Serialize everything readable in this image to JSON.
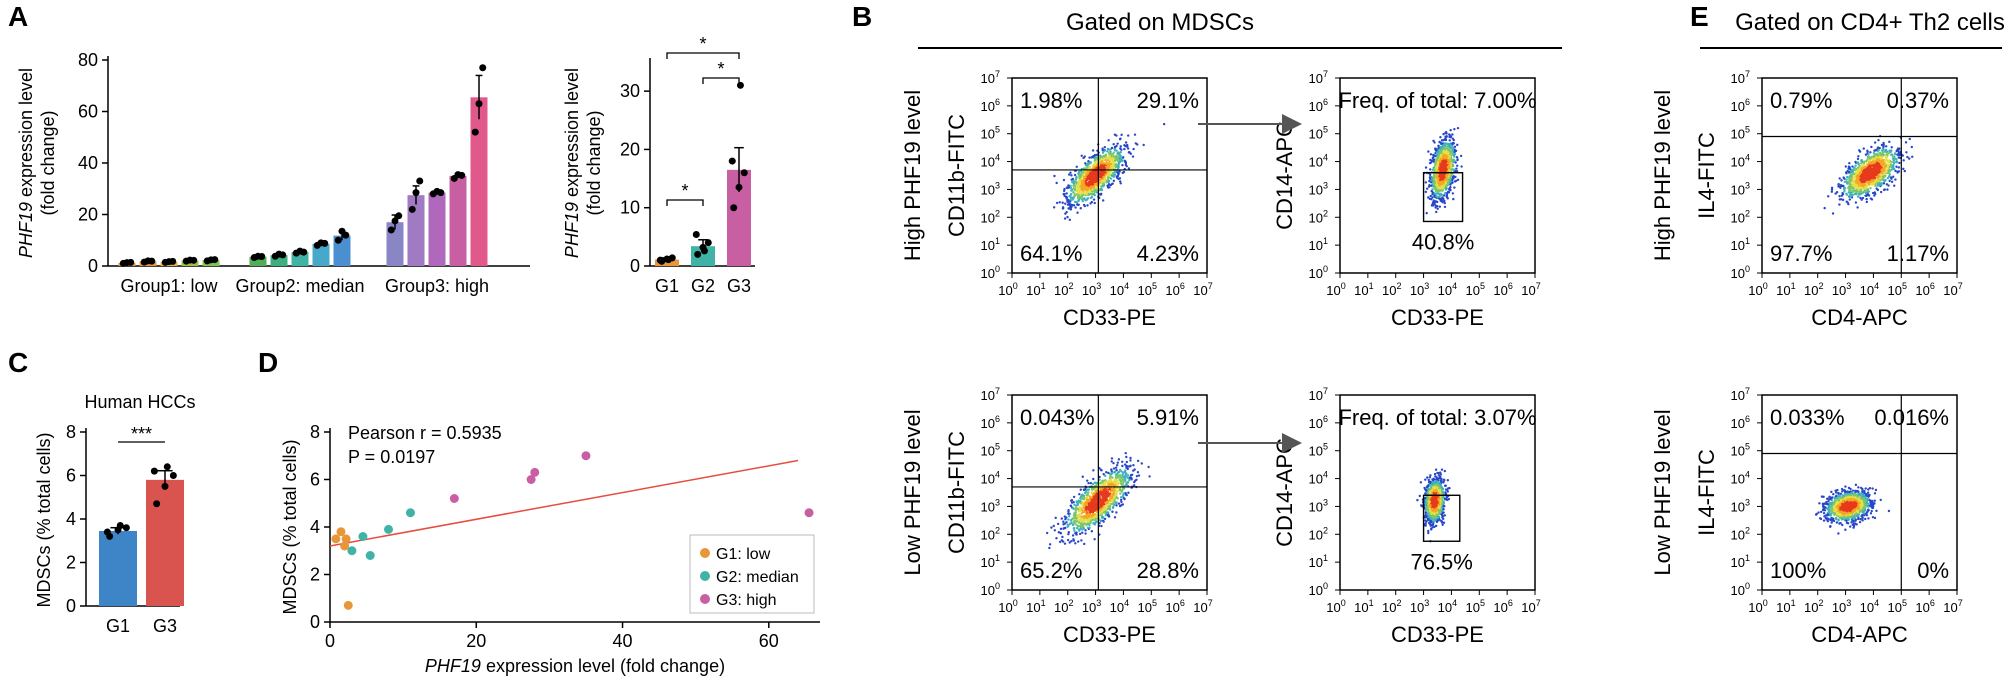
{
  "panel_labels": {
    "a": "A",
    "b": "B",
    "c": "C",
    "d": "D",
    "e": "E"
  },
  "headers": {
    "b": "Gated on MDSCs",
    "e": "Gated on CD4+ Th2 cells"
  },
  "chart_data": [
    {
      "id": "A1",
      "type": "bar",
      "title": "",
      "ylabel_gene": "PHF19",
      "ylabel_rest": " expression level",
      "ylabel_line2": "(fold change)",
      "ylim": [
        0,
        80
      ],
      "yticks": [
        0,
        20,
        40,
        60,
        80
      ],
      "groups": [
        "Group1: low",
        "Group2: median",
        "Group3: high"
      ],
      "values": [
        1.2,
        1.8,
        1.6,
        2.1,
        2.3,
        3.6,
        4.2,
        5.4,
        8.6,
        11.8,
        17,
        27.5,
        28.5,
        35,
        65.5
      ],
      "errors": [
        0.3,
        0.4,
        0.3,
        0.4,
        0.4,
        0.4,
        0.5,
        0.5,
        0.6,
        1.8,
        2.8,
        3.6,
        0.6,
        0.8,
        8.5
      ],
      "colors": [
        "#e8963a",
        "#e8963a",
        "#e0b040",
        "#9cc145",
        "#7fc24e",
        "#4fae57",
        "#3fae7e",
        "#3fb3a5",
        "#48a8c9",
        "#4b8fd0",
        "#8a86c6",
        "#a07ac2",
        "#b068bd",
        "#c95fa3",
        "#e0598a"
      ],
      "points": [
        [
          1.0,
          1.3,
          1.4
        ],
        [
          1.5,
          2.0,
          1.9
        ],
        [
          1.4,
          1.7,
          1.8
        ],
        [
          1.9,
          2.3,
          2.2
        ],
        [
          2.0,
          2.4,
          2.5
        ],
        [
          3.3,
          3.8,
          3.7
        ],
        [
          3.8,
          4.6,
          4.3
        ],
        [
          5.0,
          5.8,
          5.4
        ],
        [
          8.0,
          9.0,
          8.8
        ],
        [
          10.0,
          13.5,
          12.0
        ],
        [
          14.0,
          17.5,
          19.5
        ],
        [
          22.0,
          28.5,
          33.0
        ],
        [
          28.0,
          29.0,
          28.5
        ],
        [
          34.0,
          35.5,
          35.2
        ],
        [
          52.0,
          63.0,
          77.0
        ]
      ]
    },
    {
      "id": "A2",
      "type": "bar",
      "title": "",
      "ylabel_gene": "PHF19",
      "ylabel_rest": " expression level",
      "ylabel_line2": "(fold change)",
      "ylim": [
        0,
        35
      ],
      "yticks": [
        0,
        10,
        20,
        30
      ],
      "categories": [
        "G1",
        "G2",
        "G3"
      ],
      "values": [
        1.1,
        3.4,
        16.5
      ],
      "errors": [
        0.3,
        1.1,
        3.8
      ],
      "colors": [
        "#e8963a",
        "#3fb3a5",
        "#c95fa3"
      ],
      "points": [
        [
          0.8,
          1.2,
          1.4,
          1.0,
          1.1
        ],
        [
          2.0,
          3.2,
          4.0,
          5.4,
          2.6
        ],
        [
          10.0,
          13.5,
          16.0,
          18.0,
          31.0
        ]
      ],
      "significance": [
        {
          "label": "*",
          "from": 0,
          "to": 1
        },
        {
          "label": "*",
          "from": 1,
          "to": 2
        },
        {
          "label": "*",
          "from": 0,
          "to": 2
        }
      ]
    },
    {
      "id": "C",
      "type": "bar",
      "title": "Human HCCs",
      "ylabel": "MDSCs (% total cells)",
      "ylim": [
        0,
        8
      ],
      "yticks": [
        0,
        2,
        4,
        6,
        8
      ],
      "categories": [
        "G1",
        "G3"
      ],
      "values": [
        3.45,
        5.8
      ],
      "errors": [
        0.15,
        0.42
      ],
      "colors": [
        "#3d85c6",
        "#d9534f"
      ],
      "points": [
        [
          3.2,
          3.5,
          3.6,
          3.4,
          3.7
        ],
        [
          4.7,
          5.5,
          6.0,
          6.2,
          6.4
        ]
      ],
      "significance": [
        {
          "label": "***",
          "from": 0,
          "to": 1
        }
      ]
    },
    {
      "id": "D",
      "type": "scatter",
      "xlabel_gene": "PHF19",
      "xlabel_rest": " expression level (fold change)",
      "ylabel": "MDSCs (% total cells)",
      "xlim": [
        0,
        67
      ],
      "ylim": [
        0,
        8
      ],
      "xticks": [
        0,
        20,
        40,
        60
      ],
      "yticks": [
        0,
        2,
        4,
        6,
        8
      ],
      "annotation": [
        "Pearson r = 0.5935",
        "P = 0.0197"
      ],
      "fit": {
        "x": [
          0,
          64
        ],
        "y": [
          3.2,
          6.8
        ]
      },
      "series": [
        {
          "name": "G1: low",
          "color": "#e8963a",
          "x": [
            0.8,
            1.5,
            2.0,
            2.2,
            2.5
          ],
          "y": [
            3.5,
            3.8,
            3.2,
            3.5,
            0.7
          ]
        },
        {
          "name": "G2: median",
          "color": "#3fb3a5",
          "x": [
            3.0,
            4.5,
            5.5,
            8.0,
            11.0
          ],
          "y": [
            3.0,
            3.6,
            2.8,
            3.9,
            4.6
          ]
        },
        {
          "name": "G3: high",
          "color": "#c95fa3",
          "x": [
            17.0,
            27.5,
            28.0,
            35.0,
            65.5
          ],
          "y": [
            5.2,
            6.0,
            6.3,
            7.0,
            4.6
          ]
        }
      ]
    },
    {
      "id": "B_high_1",
      "type": "flow",
      "title": "High PHF19 level",
      "xlabel": "CD33-PE",
      "ylabel": "CD11b-FITC",
      "quadrants": {
        "ul": "1.98%",
        "ur": "29.1%",
        "ll": "64.1%",
        "lr": "4.23%"
      },
      "gate": {
        "x": 3.1,
        "y": 3.7
      },
      "density": {
        "cx": 3.0,
        "cy": 3.5,
        "spread": 0.55,
        "angle": 45,
        "stretch": 2.4
      }
    },
    {
      "id": "B_high_2",
      "type": "flow",
      "xlabel": "CD33-PE",
      "ylabel": "CD14-APC",
      "freq_label": "Freq. of total: 7.00%",
      "gate_label": "40.8%",
      "box": [
        3.0,
        4.4,
        1.85,
        3.6
      ],
      "density": {
        "cx": 3.7,
        "cy": 3.7,
        "spread": 0.4,
        "angle": 80,
        "stretch": 2.6
      }
    },
    {
      "id": "B_low_1",
      "type": "flow",
      "title": "Low PHF19 level",
      "xlabel": "CD33-PE",
      "ylabel": "CD11b-FITC",
      "quadrants": {
        "ul": "0.043%",
        "ur": "5.91%",
        "ll": "65.2%",
        "lr": "28.8%"
      },
      "gate": {
        "x": 3.1,
        "y": 3.7
      },
      "density": {
        "cx": 3.1,
        "cy": 3.2,
        "spread": 0.6,
        "angle": 45,
        "stretch": 2.5
      }
    },
    {
      "id": "B_low_2",
      "type": "flow",
      "xlabel": "CD33-PE",
      "ylabel": "CD14-APC",
      "freq_label": "Freq. of total: 3.07%",
      "gate_label": "76.5%",
      "box": [
        3.0,
        4.3,
        1.75,
        3.4
      ],
      "density": {
        "cx": 3.4,
        "cy": 3.2,
        "spread": 0.35,
        "angle": 85,
        "stretch": 2.2
      }
    },
    {
      "id": "E_high",
      "type": "flow",
      "title": "High PHF19 level",
      "xlabel": "CD4-APC",
      "ylabel": "IL4-FITC",
      "quadrants": {
        "ul": "0.79%",
        "ur": "0.37%",
        "ll": "97.7%",
        "lr": "1.17%"
      },
      "gate": {
        "x": 5.0,
        "y": 4.9
      },
      "density": {
        "cx": 3.9,
        "cy": 3.6,
        "spread": 0.6,
        "angle": 40,
        "stretch": 2.0
      }
    },
    {
      "id": "E_low",
      "type": "flow",
      "title": "Low PHF19 level",
      "xlabel": "CD4-APC",
      "ylabel": "IL4-FITC",
      "quadrants": {
        "ul": "0.033%",
        "ur": "0.016%",
        "ll": "100%",
        "lr": "0%"
      },
      "gate": {
        "x": 5.0,
        "y": 4.9
      },
      "density": {
        "cx": 3.1,
        "cy": 3.0,
        "spread": 0.5,
        "angle": 15,
        "stretch": 1.6
      }
    }
  ]
}
